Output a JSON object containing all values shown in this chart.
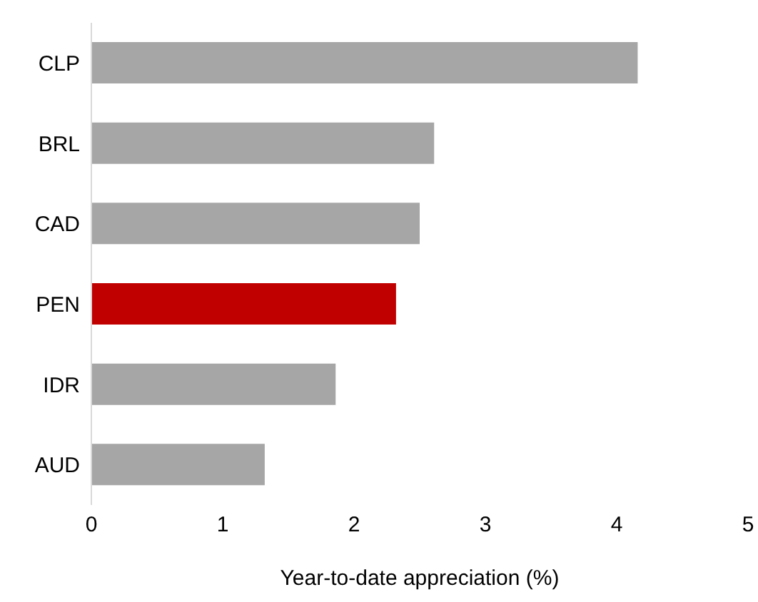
{
  "chart_data": {
    "type": "bar",
    "orientation": "horizontal",
    "xlabel": "Year-to-date appreciation  (%)",
    "categories": [
      "CLP",
      "BRL",
      "CAD",
      "PEN",
      "IDR",
      "AUD"
    ],
    "values": [
      4.16,
      2.61,
      2.5,
      2.32,
      1.86,
      1.32
    ],
    "colors": [
      "#a6a6a6",
      "#a6a6a6",
      "#a6a6a6",
      "#c00000",
      "#a6a6a6",
      "#a6a6a6"
    ],
    "xlim": [
      0,
      5
    ],
    "xticks": [
      0,
      1,
      2,
      3,
      4,
      5
    ],
    "grid": false,
    "legend": false
  }
}
